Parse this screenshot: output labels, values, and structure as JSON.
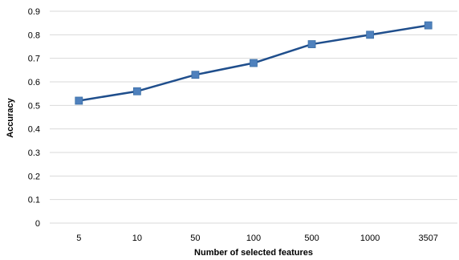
{
  "chart_data": {
    "type": "line",
    "categories": [
      "5",
      "10",
      "50",
      "100",
      "500",
      "1000",
      "3507"
    ],
    "series": [
      {
        "values": [
          0.52,
          0.56,
          0.63,
          0.68,
          0.76,
          0.8,
          0.84
        ]
      }
    ],
    "xlabel": "Number of selected features",
    "ylabel": "Accuracy",
    "ylim": [
      0,
      0.9
    ],
    "yticks": [
      "0",
      "0.1",
      "0.2",
      "0.3",
      "0.4",
      "0.5",
      "0.6",
      "0.7",
      "0.8",
      "0.9"
    ],
    "grid": true,
    "legend": "none",
    "colors": {
      "line": "#1f4e8c",
      "marker": "#4f81bd",
      "grid": "#d9d9d9"
    }
  }
}
